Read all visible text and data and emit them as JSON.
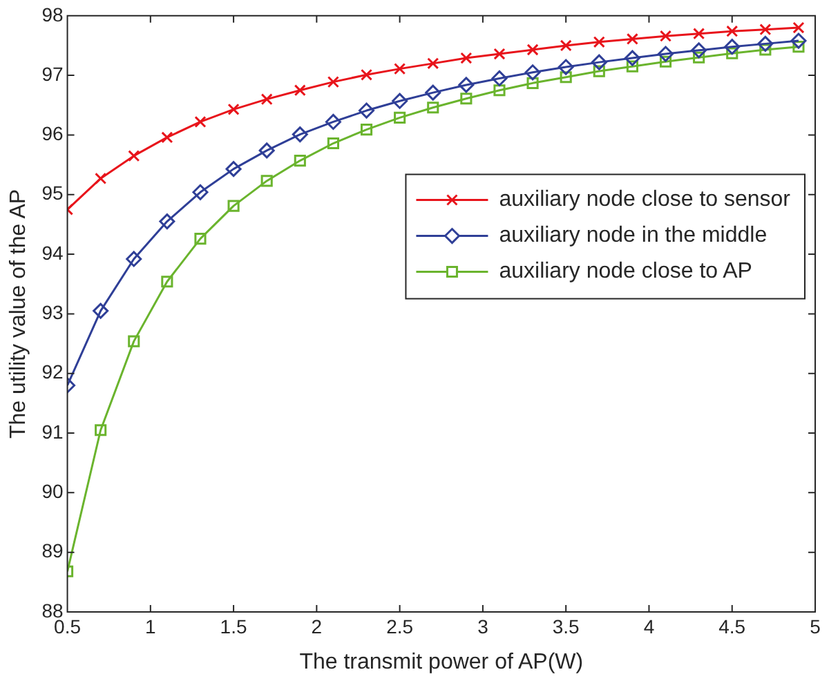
{
  "chart_data": {
    "type": "line",
    "xlabel": "The transmit power of AP(W)",
    "ylabel": "The utility value of the AP",
    "x": [
      0.5,
      0.7,
      0.9,
      1.1,
      1.3,
      1.5,
      1.7,
      1.9,
      2.1,
      2.3,
      2.5,
      2.7,
      2.9,
      3.1,
      3.3,
      3.5,
      3.7,
      3.9,
      4.1,
      4.3,
      4.5,
      4.7,
      4.9
    ],
    "series": [
      {
        "name": "auxiliary node close to sensor",
        "color": "#e8141b",
        "marker": "cross",
        "values": [
          94.75,
          95.27,
          95.65,
          95.96,
          96.22,
          96.43,
          96.6,
          96.75,
          96.89,
          97.01,
          97.11,
          97.2,
          97.29,
          97.36,
          97.43,
          97.5,
          97.56,
          97.61,
          97.66,
          97.7,
          97.74,
          97.77,
          97.8
        ]
      },
      {
        "name": "auxiliary node in the middle",
        "color": "#2f3f97",
        "marker": "diamond",
        "values": [
          91.8,
          93.05,
          93.92,
          94.55,
          95.04,
          95.43,
          95.74,
          96.01,
          96.22,
          96.41,
          96.57,
          96.71,
          96.84,
          96.95,
          97.05,
          97.14,
          97.22,
          97.29,
          97.36,
          97.42,
          97.48,
          97.53,
          97.58
        ]
      },
      {
        "name": "auxiliary node close to AP",
        "color": "#6ab42d",
        "marker": "square",
        "values": [
          88.68,
          91.05,
          92.54,
          93.54,
          94.26,
          94.81,
          95.23,
          95.57,
          95.86,
          96.09,
          96.29,
          96.46,
          96.61,
          96.75,
          96.87,
          96.97,
          97.07,
          97.15,
          97.23,
          97.3,
          97.37,
          97.43,
          97.48
        ]
      }
    ],
    "xlim": [
      0.5,
      5
    ],
    "xticks": [
      0.5,
      1,
      1.5,
      2,
      2.5,
      3,
      3.5,
      4,
      4.5,
      5
    ],
    "ylim": [
      88,
      98
    ],
    "yticks": [
      88,
      89,
      90,
      91,
      92,
      93,
      94,
      95,
      96,
      97,
      98
    ],
    "grid": false,
    "legend": "right",
    "line_style": "solid"
  }
}
